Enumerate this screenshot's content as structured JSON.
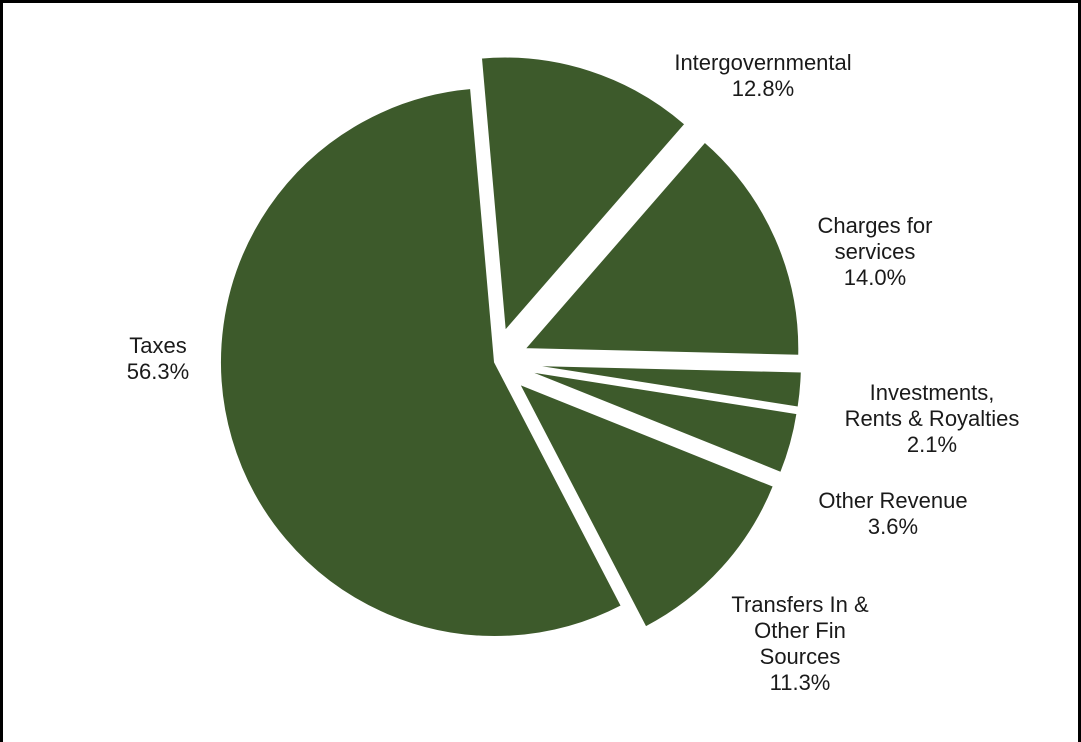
{
  "chart_data": {
    "type": "pie",
    "title": "",
    "colors": {
      "slice": "#3d5a2b",
      "border": "#000000",
      "background": "#ffffff",
      "label": "#1a1a1a"
    },
    "slices": [
      {
        "id": "taxes",
        "label_lines": [
          "Taxes"
        ],
        "value": 56.3,
        "value_label": "56.3%",
        "exploded": false
      },
      {
        "id": "intergovernmental",
        "label_lines": [
          "Intergovernmental"
        ],
        "value": 12.8,
        "value_label": "12.8%",
        "exploded": true
      },
      {
        "id": "charges",
        "label_lines": [
          "Charges for",
          "services"
        ],
        "value": 14.0,
        "value_label": "14.0%",
        "exploded": true
      },
      {
        "id": "investments",
        "label_lines": [
          "Investments,",
          "Rents & Royalties"
        ],
        "value": 2.1,
        "value_label": "2.1%",
        "exploded": true
      },
      {
        "id": "other-revenue",
        "label_lines": [
          "Other Revenue"
        ],
        "value": 3.6,
        "value_label": "3.6%",
        "exploded": true
      },
      {
        "id": "transfers",
        "label_lines": [
          "Transfers In &",
          "Other Fin",
          "Sources"
        ],
        "value": 11.3,
        "value_label": "11.3%",
        "exploded": true
      }
    ]
  }
}
